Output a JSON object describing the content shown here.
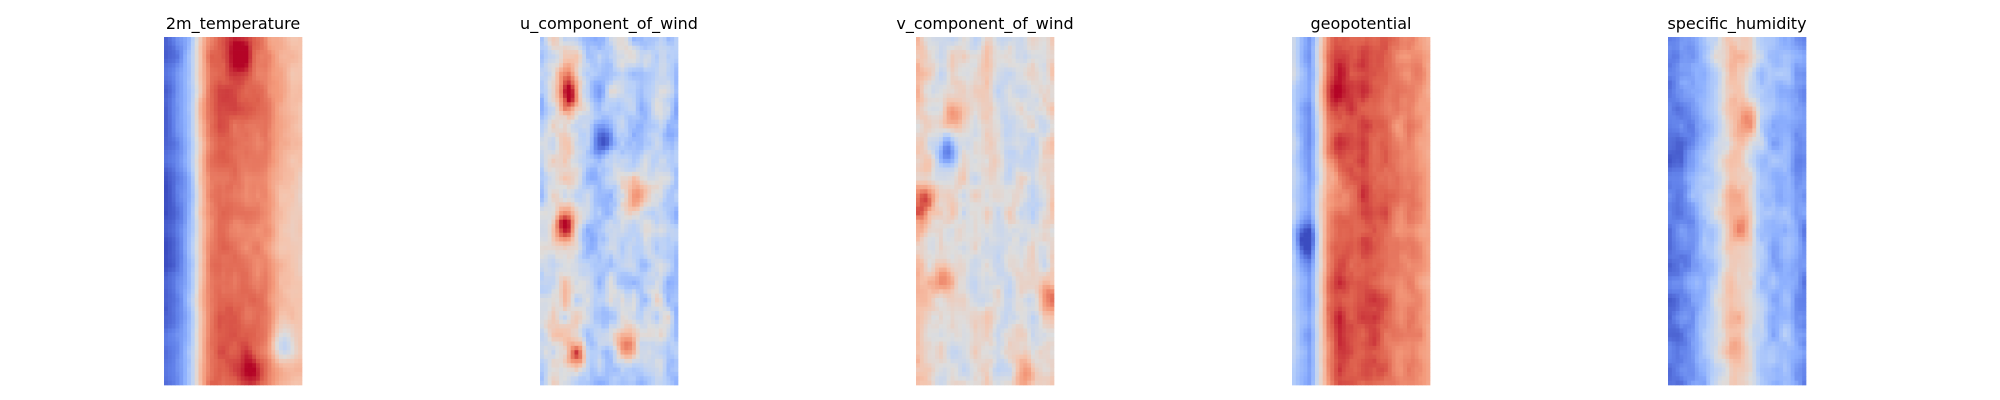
{
  "chart_data": [
    {
      "type": "heatmap",
      "title": "2m_temperature",
      "colormap": "coolwarm",
      "axes_visible": false,
      "grid": false,
      "column_profile": [
        0.04,
        0.08,
        0.18,
        0.34,
        0.62,
        0.82,
        0.86,
        0.86,
        0.84,
        0.83,
        0.82,
        0.8,
        0.72,
        0.66,
        0.62,
        0.6
      ],
      "row_profile": [
        0.0,
        0.02,
        0.03,
        0.02,
        0.0,
        -0.02,
        -0.03,
        -0.02,
        0.0,
        0.02,
        0.03,
        0.02
      ],
      "hotspots": [
        {
          "x": 0.55,
          "y": 0.05,
          "value": 0.22
        },
        {
          "x": 0.62,
          "y": 0.96,
          "value": 0.18
        },
        {
          "x": 0.86,
          "y": 0.88,
          "value": -0.28
        }
      ],
      "noise": 0.05,
      "seed": 11
    },
    {
      "type": "heatmap",
      "title": "u_component_of_wind",
      "colormap": "coolwarm",
      "axes_visible": false,
      "grid": false,
      "column_profile": [
        0.38,
        0.46,
        0.52,
        0.55,
        0.45,
        0.36,
        0.32,
        0.34,
        0.4,
        0.44,
        0.4,
        0.34,
        0.42,
        0.48,
        0.36,
        0.3
      ],
      "row_profile": [
        0.0,
        0.03,
        0.0,
        -0.03,
        0.0,
        0.03,
        0.0,
        -0.03,
        0.0,
        0.03,
        0.0,
        -0.03
      ],
      "hotspots": [
        {
          "x": 0.22,
          "y": 0.16,
          "value": 0.55
        },
        {
          "x": 0.18,
          "y": 0.55,
          "value": 0.45
        },
        {
          "x": 0.7,
          "y": 0.45,
          "value": 0.35
        },
        {
          "x": 0.28,
          "y": 0.92,
          "value": 0.4
        },
        {
          "x": 0.62,
          "y": 0.88,
          "value": 0.3
        },
        {
          "x": 0.45,
          "y": 0.3,
          "value": -0.25
        }
      ],
      "noise": 0.17,
      "seed": 23
    },
    {
      "type": "heatmap",
      "title": "v_component_of_wind",
      "colormap": "coolwarm",
      "axes_visible": false,
      "grid": false,
      "column_profile": [
        0.62,
        0.58,
        0.52,
        0.5,
        0.5,
        0.52,
        0.5,
        0.5,
        0.52,
        0.5,
        0.48,
        0.5,
        0.48,
        0.46,
        0.5,
        0.58
      ],
      "row_profile": [
        0.0,
        0.01,
        0.0,
        -0.01,
        0.0,
        0.01,
        0.0,
        -0.01,
        0.0,
        0.01,
        0.0,
        -0.01
      ],
      "hotspots": [
        {
          "x": 0.22,
          "y": 0.32,
          "value": -0.4
        },
        {
          "x": 0.26,
          "y": 0.24,
          "value": 0.3
        },
        {
          "x": 0.06,
          "y": 0.48,
          "value": 0.3
        },
        {
          "x": 0.95,
          "y": 0.75,
          "value": 0.3
        },
        {
          "x": 0.8,
          "y": 0.97,
          "value": 0.35
        },
        {
          "x": 0.2,
          "y": 0.7,
          "value": 0.22
        }
      ],
      "noise": 0.13,
      "seed": 37
    },
    {
      "type": "heatmap",
      "title": "geopotential",
      "colormap": "coolwarm",
      "axes_visible": false,
      "grid": false,
      "column_profile": [
        0.45,
        0.28,
        0.18,
        0.52,
        0.82,
        0.92,
        0.9,
        0.88,
        0.9,
        0.88,
        0.86,
        0.82,
        0.78,
        0.8,
        0.76,
        0.7
      ],
      "row_profile": [
        0.0,
        0.02,
        0.0,
        -0.02,
        0.0,
        0.02,
        0.0,
        -0.02,
        0.0,
        0.02,
        0.0,
        -0.02
      ],
      "hotspots": [
        {
          "x": 0.28,
          "y": 0.16,
          "value": 0.12
        },
        {
          "x": 0.3,
          "y": 0.4,
          "value": -0.18
        },
        {
          "x": 0.35,
          "y": 0.47,
          "value": -0.15
        },
        {
          "x": 0.1,
          "y": 0.58,
          "value": -0.3
        }
      ],
      "noise": 0.06,
      "seed": 53
    },
    {
      "type": "heatmap",
      "title": "specific_humidity",
      "colormap": "coolwarm",
      "axes_visible": false,
      "grid": false,
      "column_profile": [
        0.08,
        0.1,
        0.16,
        0.24,
        0.3,
        0.4,
        0.52,
        0.64,
        0.62,
        0.5,
        0.34,
        0.3,
        0.26,
        0.3,
        0.2,
        0.14
      ],
      "row_profile": [
        0.0,
        0.02,
        0.0,
        -0.02,
        0.0,
        0.02,
        0.0,
        -0.02,
        0.0,
        0.02,
        0.0,
        -0.02
      ],
      "hotspots": [
        {
          "x": 0.6,
          "y": 0.25,
          "value": 0.3
        },
        {
          "x": 0.55,
          "y": 0.55,
          "value": 0.15
        },
        {
          "x": 0.5,
          "y": 0.9,
          "value": 0.12
        }
      ],
      "noise": 0.1,
      "seed": 71
    }
  ]
}
